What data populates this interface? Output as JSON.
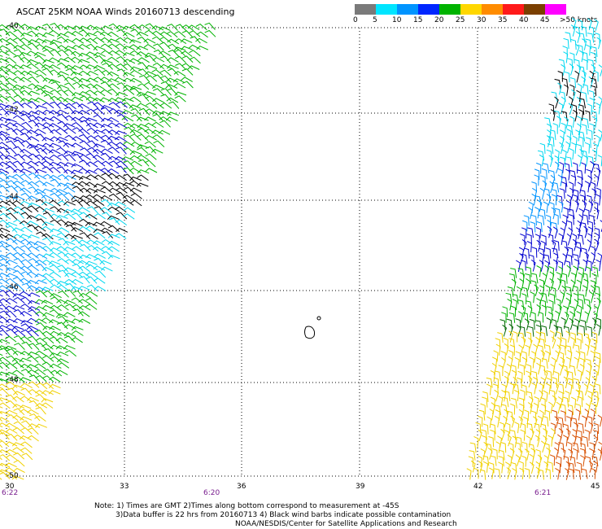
{
  "title": "ASCAT 25KM NOAA Winds 20160713 descending",
  "scale": {
    "labels": [
      "0",
      "5",
      "10",
      "15",
      "20",
      "25",
      "30",
      "35",
      "40",
      "45",
      ">50 knots"
    ],
    "colors": [
      "#7a7a7a",
      "#00e5ff",
      "#0094ff",
      "#0026ff",
      "#00b300",
      "#ffd700",
      "#ff8c00",
      "#ff1a1a",
      "#7b3f00",
      "#ff00ff",
      "#8a2be2"
    ]
  },
  "lat_labels": [
    "-40",
    "-42",
    "-44",
    "-46",
    "-48",
    "-50"
  ],
  "lon_labels": [
    "30",
    "33",
    "36",
    "39",
    "42",
    "45"
  ],
  "times": [
    "6:22",
    "6:20",
    "6:21"
  ],
  "notes": {
    "line1": "Note: 1) Times are GMT 2)Times along bottom correspond to measurement at -45S",
    "line2": "3)Data buffer is 22 hrs from 20160713 4) Black wind barbs indicate possible contamination",
    "line3": "NOAA/NESDIS/Center for Satellite Applications and Research"
  },
  "colors": {
    "grey": "#000000",
    "cyan": "#00d8f0",
    "lightblue": "#0094ff",
    "blue": "#0000d0",
    "green": "#00b300",
    "darkgreen": "#006600",
    "yellow": "#f0d000",
    "orange": "#d85000"
  }
}
